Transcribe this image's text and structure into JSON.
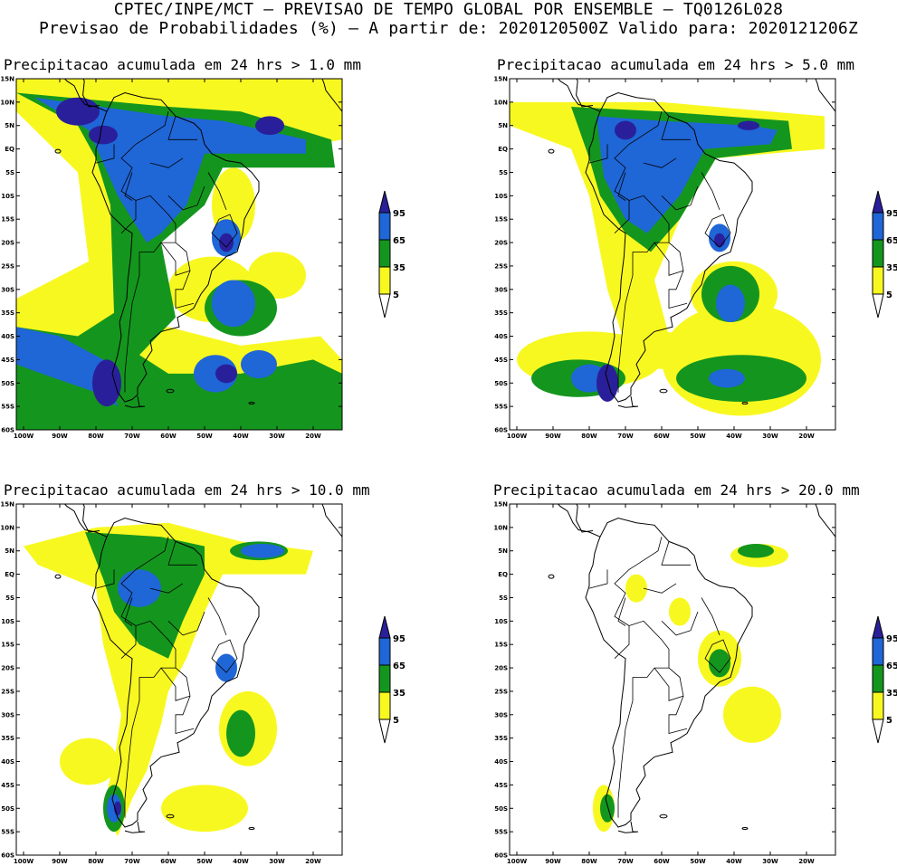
{
  "header": {
    "line1": "CPTEC/INPE/MCT – PREVISAO DE TEMPO GLOBAL POR ENSEMBLE – TQ0126L028",
    "line2": "Previsao de Probabilidades (%) –   A partir de: 2020120500Z  Valido para: 2020121206Z"
  },
  "axes": {
    "lat_labels": [
      "15N",
      "10N",
      "5N",
      "EQ",
      "5S",
      "10S",
      "15S",
      "20S",
      "25S",
      "30S",
      "35S",
      "40S",
      "45S",
      "50S",
      "55S",
      "60S"
    ],
    "lon_labels": [
      "100W",
      "90W",
      "80W",
      "70W",
      "60W",
      "50W",
      "40W",
      "30W",
      "20W"
    ]
  },
  "legend": {
    "levels": [
      "95",
      "65",
      "35",
      "5"
    ],
    "colors": {
      "c95": "#2a1f9a",
      "c65": "#1f66d6",
      "c35": "#14961e",
      "c5": "#f8f821",
      "low": "#ffffff"
    }
  },
  "colors": {
    "coast": "#000000",
    "border": "#000000"
  },
  "panels": [
    {
      "id": "p1",
      "title": "Precipitacao acumulada em 24 hrs > 1.0 mm",
      "threshold_mm": 1.0
    },
    {
      "id": "p2",
      "title": "Precipitacao acumulada em 24 hrs > 5.0 mm",
      "threshold_mm": 5.0
    },
    {
      "id": "p3",
      "title": "Precipitacao acumulada em 24 hrs > 10.0 mm",
      "threshold_mm": 10.0
    },
    {
      "id": "p4",
      "title": "Precipitacao acumulada em 24 hrs > 20.0 mm",
      "threshold_mm": 20.0
    }
  ]
}
